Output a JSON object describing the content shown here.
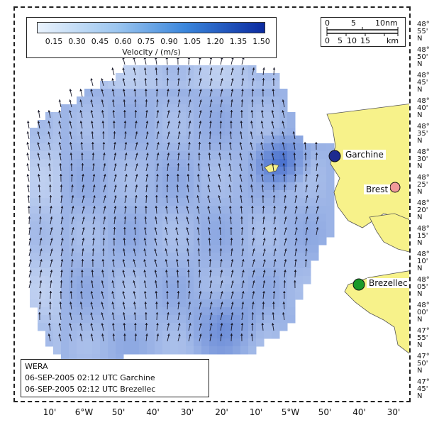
{
  "colors": {
    "land": "#f7f28a",
    "arrow": "#1a1a2a",
    "garchine_marker": "#1d2b8f",
    "brest_marker": "#f09a9a",
    "brezellec_marker": "#1a9a2a",
    "colorbar_start": "#eaf3fd",
    "colorbar_end": "#0b2aa0"
  },
  "legend": {
    "tick_labels": [
      "0.15",
      "0.30",
      "0.45",
      "0.60",
      "0.75",
      "0.90",
      "1.05",
      "1.20",
      "1.35",
      "1.50"
    ],
    "title": "Velocity / (m/s)"
  },
  "scale_bar": {
    "nm_labels": [
      "0",
      "5",
      "10nm"
    ],
    "km_labels": [
      "0",
      "5",
      "10",
      "15",
      "km"
    ]
  },
  "stations": {
    "garchine": "Garchine",
    "brest": "Brest",
    "brezellec": "Brezellec"
  },
  "info": {
    "system": "WERA",
    "line1": "06-SEP-2005 02:12 UTC Garchine",
    "line2": "06-SEP-2005 02:12 UTC Brezellec"
  },
  "lat_labels": [
    [
      "48°",
      "55'",
      "N"
    ],
    [
      "48°",
      "50'",
      "N"
    ],
    [
      "48°",
      "45'",
      "N"
    ],
    [
      "48°",
      "40'",
      "N"
    ],
    [
      "48°",
      "35'",
      "N"
    ],
    [
      "48°",
      "30'",
      "N"
    ],
    [
      "48°",
      "25'",
      "N"
    ],
    [
      "48°",
      "20'",
      "N"
    ],
    [
      "48°",
      "15'",
      "N"
    ],
    [
      "48°",
      "10'",
      "N"
    ],
    [
      "48°",
      "05'",
      "N"
    ],
    [
      "48°",
      "00'",
      "N"
    ],
    [
      "47°",
      "55'",
      "N"
    ],
    [
      "47°",
      "50'",
      "N"
    ],
    [
      "47°",
      "45'",
      "N"
    ]
  ],
  "lon_labels": [
    "10'",
    "6°W",
    "50'",
    "40'",
    "30'",
    "20'",
    "10'",
    "5°W",
    "50'",
    "40'",
    "30'"
  ]
}
